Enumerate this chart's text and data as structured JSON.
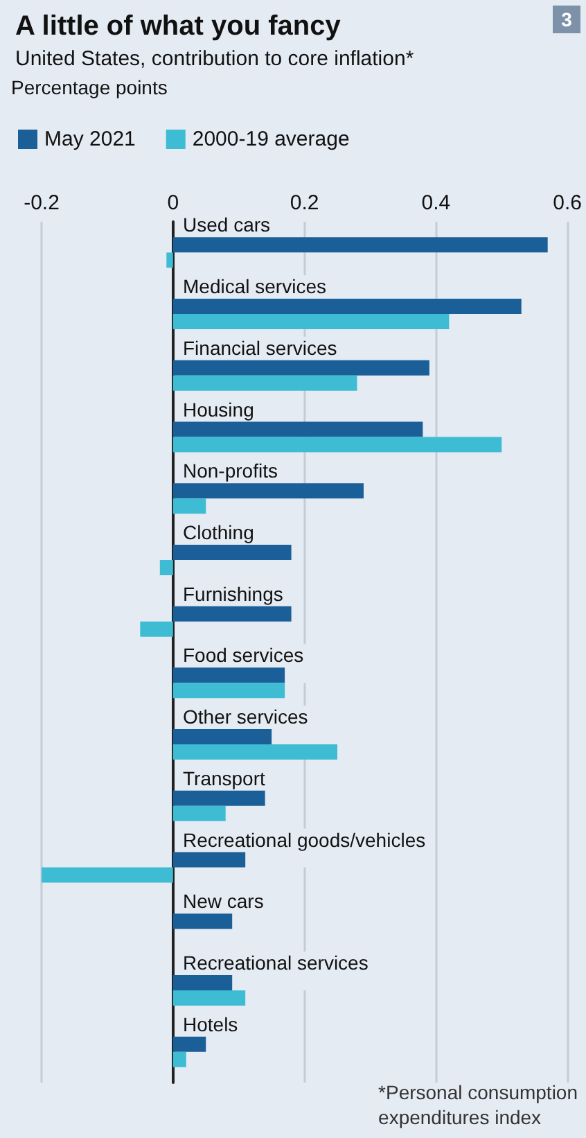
{
  "chart_data": {
    "type": "bar",
    "orientation": "horizontal",
    "title": "A little of what you fancy",
    "subtitle": "United States, contribution to core inflation*",
    "xlabel": "Percentage points",
    "categories": [
      "Used cars",
      "Medical services",
      "Financial services",
      "Housing",
      "Non-profits",
      "Clothing",
      "Furnishings",
      "Food services",
      "Other services",
      "Transport",
      "Recreational goods/vehicles",
      "New cars",
      "Recreational services",
      "Hotels"
    ],
    "series": [
      {
        "name": "May 2021",
        "color": "#1b5f98",
        "values": [
          0.57,
          0.53,
          0.39,
          0.38,
          0.29,
          0.18,
          0.18,
          0.17,
          0.15,
          0.14,
          0.11,
          0.09,
          0.09,
          0.05
        ]
      },
      {
        "name": "2000-19 average",
        "color": "#3dbcd3",
        "values": [
          -0.01,
          0.42,
          0.28,
          0.5,
          0.05,
          -0.02,
          -0.05,
          0.17,
          0.25,
          0.08,
          -0.2,
          null,
          0.11,
          0.02
        ]
      }
    ],
    "xlim": [
      -0.2,
      0.6
    ],
    "xticks": [
      -0.2,
      0,
      0.2,
      0.4,
      0.6
    ],
    "grid": "x",
    "legend": "top left",
    "annotations": [
      "3",
      "*Personal consumption\nexpenditures index"
    ]
  }
}
